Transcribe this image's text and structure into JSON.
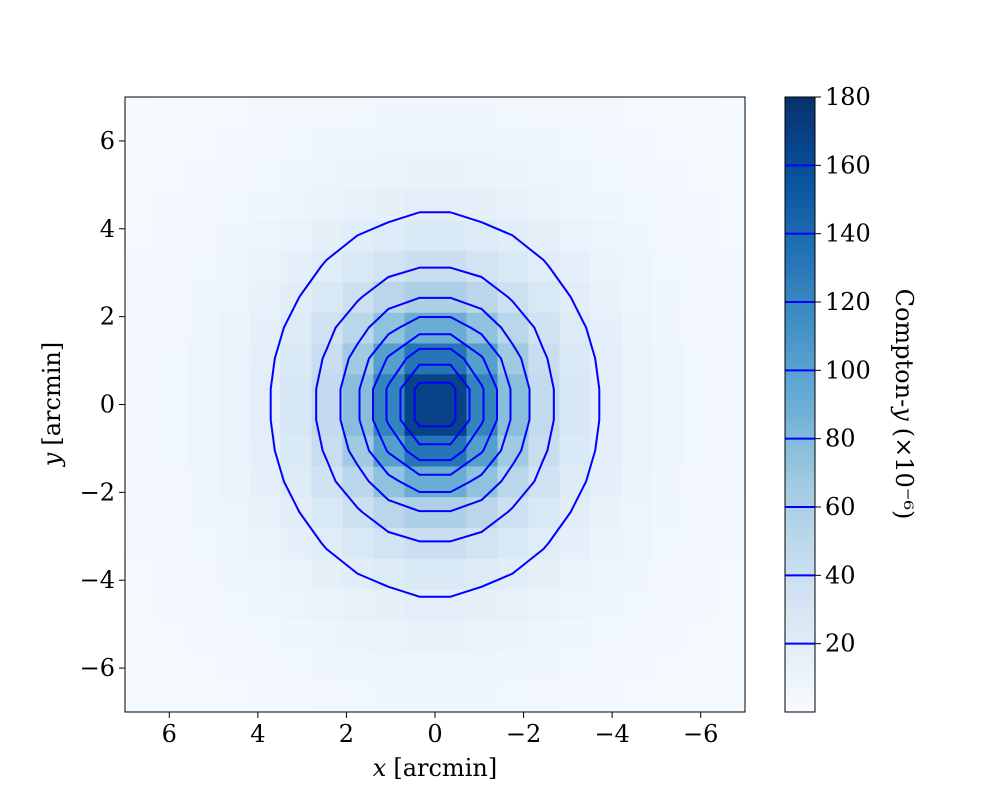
{
  "chart_data": {
    "type": "heatmap",
    "xlabel": {
      "symbol": "x",
      "unit": "[arcmin]"
    },
    "ylabel": {
      "symbol": "y",
      "unit": "[arcmin]"
    },
    "x": [
      -6.65,
      -5.95,
      -5.25,
      -4.55,
      -3.85,
      -3.15,
      -2.45,
      -1.75,
      -1.05,
      -0.35,
      0.35,
      1.05,
      1.75,
      2.45,
      3.15,
      3.85,
      4.55,
      5.25,
      5.95,
      6.65
    ],
    "y": [
      -6.65,
      -5.95,
      -5.25,
      -4.55,
      -3.85,
      -3.15,
      -2.45,
      -1.75,
      -1.05,
      -0.35,
      0.35,
      1.05,
      1.75,
      2.45,
      3.15,
      3.85,
      4.55,
      5.25,
      5.95,
      6.65
    ],
    "z": [
      [
        2.1,
        2.5,
        2.9,
        3.5,
        4.1,
        4.8,
        5.4,
        6.1,
        6.5,
        6.8,
        6.8,
        6.5,
        6.1,
        5.4,
        4.8,
        4.1,
        3.5,
        2.9,
        2.5,
        2.1
      ],
      [
        2.4,
        2.8,
        3.4,
        4.2,
        5.0,
        6.0,
        7.0,
        7.9,
        8.7,
        9.1,
        9.1,
        8.7,
        7.9,
        7.0,
        6.0,
        5.0,
        4.2,
        3.4,
        2.8,
        2.4
      ],
      [
        2.7,
        3.3,
        4.0,
        5.0,
        6.2,
        7.5,
        9.0,
        11,
        12,
        13,
        13,
        12,
        11,
        9.0,
        7.5,
        6.2,
        5.0,
        4.0,
        3.3,
        2.7
      ],
      [
        3.0,
        3.7,
        4.7,
        6.0,
        7.6,
        9.6,
        12,
        14,
        16,
        18,
        18,
        16,
        14,
        12,
        9.6,
        7.6,
        6.0,
        4.7,
        3.7,
        3.0
      ],
      [
        3.3,
        4.2,
        5.4,
        7.1,
        9.3,
        12,
        16,
        20,
        23,
        26,
        26,
        23,
        20,
        16,
        12,
        9.3,
        7.1,
        5.4,
        4.2,
        3.3
      ],
      [
        3.6,
        4.7,
        6.2,
        8.3,
        11,
        15,
        21,
        27,
        34,
        39,
        39,
        34,
        27,
        21,
        15,
        11,
        8.3,
        6.2,
        4.7,
        3.6
      ],
      [
        3.9,
        5.2,
        6.9,
        9.5,
        13,
        19,
        27,
        38,
        51,
        59,
        59,
        51,
        38,
        27,
        19,
        13,
        9.5,
        6.9,
        5.2,
        3.9
      ],
      [
        4.2,
        5.6,
        7.6,
        11,
        15,
        23,
        35,
        52,
        74,
        91,
        91,
        74,
        52,
        35,
        23,
        15,
        11,
        7.6,
        5.6,
        4.2
      ],
      [
        4.4,
        5.9,
        8.1,
        12,
        17,
        26,
        42,
        67,
        102,
        133,
        133,
        102,
        67,
        42,
        26,
        17,
        12,
        8.1,
        5.9,
        4.4
      ],
      [
        4.5,
        6.0,
        8.4,
        12,
        18,
        28,
        46,
        77,
        123,
        167,
        167,
        123,
        77,
        46,
        28,
        18,
        12,
        8.4,
        6.0,
        4.5
      ],
      [
        4.5,
        6.0,
        8.4,
        12,
        18,
        28,
        46,
        77,
        123,
        167,
        167,
        123,
        77,
        46,
        28,
        18,
        12,
        8.4,
        6.0,
        4.5
      ],
      [
        4.4,
        5.9,
        8.1,
        12,
        17,
        26,
        42,
        67,
        102,
        133,
        133,
        102,
        67,
        42,
        26,
        17,
        12,
        8.1,
        5.9,
        4.4
      ],
      [
        4.2,
        5.6,
        7.6,
        11,
        15,
        23,
        35,
        52,
        74,
        91,
        91,
        74,
        52,
        35,
        23,
        15,
        11,
        7.6,
        5.6,
        4.2
      ],
      [
        3.9,
        5.2,
        6.9,
        9.5,
        13,
        19,
        27,
        38,
        51,
        59,
        59,
        51,
        38,
        27,
        19,
        13,
        9.5,
        6.9,
        5.2,
        3.9
      ],
      [
        3.6,
        4.7,
        6.2,
        8.3,
        11,
        15,
        21,
        27,
        34,
        39,
        39,
        34,
        27,
        21,
        15,
        11,
        8.3,
        6.2,
        4.7,
        3.6
      ],
      [
        3.3,
        4.2,
        5.4,
        7.1,
        9.3,
        12,
        16,
        20,
        23,
        26,
        26,
        23,
        20,
        16,
        12,
        9.3,
        7.1,
        5.4,
        4.2,
        3.3
      ],
      [
        3.0,
        3.7,
        4.7,
        6.0,
        7.6,
        9.6,
        12,
        14,
        16,
        18,
        18,
        16,
        14,
        12,
        9.6,
        7.6,
        6.0,
        4.7,
        3.7,
        3.0
      ],
      [
        2.7,
        3.3,
        4.0,
        5.0,
        6.2,
        7.5,
        9.0,
        11,
        12,
        13,
        13,
        12,
        11,
        9.0,
        7.5,
        6.2,
        5.0,
        4.0,
        3.3,
        2.7
      ],
      [
        2.4,
        2.8,
        3.4,
        4.2,
        5.0,
        6.0,
        7.0,
        7.9,
        8.7,
        9.1,
        9.1,
        8.7,
        7.9,
        7.0,
        6.0,
        5.0,
        4.2,
        3.4,
        2.8,
        2.4
      ],
      [
        2.1,
        2.5,
        2.9,
        3.5,
        4.1,
        4.8,
        5.4,
        6.1,
        6.5,
        6.8,
        6.8,
        6.5,
        6.1,
        5.4,
        4.8,
        4.1,
        3.5,
        2.9,
        2.5,
        2.1
      ]
    ],
    "xlim": [
      7,
      -7
    ],
    "ylim": [
      -7,
      7
    ],
    "xticks": [
      6,
      4,
      2,
      0,
      {
        "value": -2,
        "label": "−2"
      },
      {
        "value": -4,
        "label": "−4"
      },
      {
        "value": -6,
        "label": "−6"
      }
    ],
    "yticks": [
      {
        "value": -6,
        "label": "−6"
      },
      {
        "value": -4,
        "label": "−4"
      },
      {
        "value": -2,
        "label": "−2"
      },
      0,
      2,
      4,
      6
    ],
    "colormap": [
      "#f7fbff",
      "#deebf7",
      "#c6dbef",
      "#9ecae1",
      "#6baed6",
      "#4292c6",
      "#2171b5",
      "#08519c",
      "#08306b"
    ],
    "clim": [
      0,
      180
    ],
    "colorbar": {
      "label": {
        "prefix": "Compton-",
        "symbol": "y",
        "suffix": "(×10⁻⁶)"
      },
      "ticks": [
        20,
        40,
        60,
        80,
        100,
        120,
        140,
        160,
        180
      ]
    },
    "contour_levels": [
      20,
      40,
      60,
      80,
      100,
      120,
      140,
      160
    ],
    "contour_color": "#0000ff"
  }
}
